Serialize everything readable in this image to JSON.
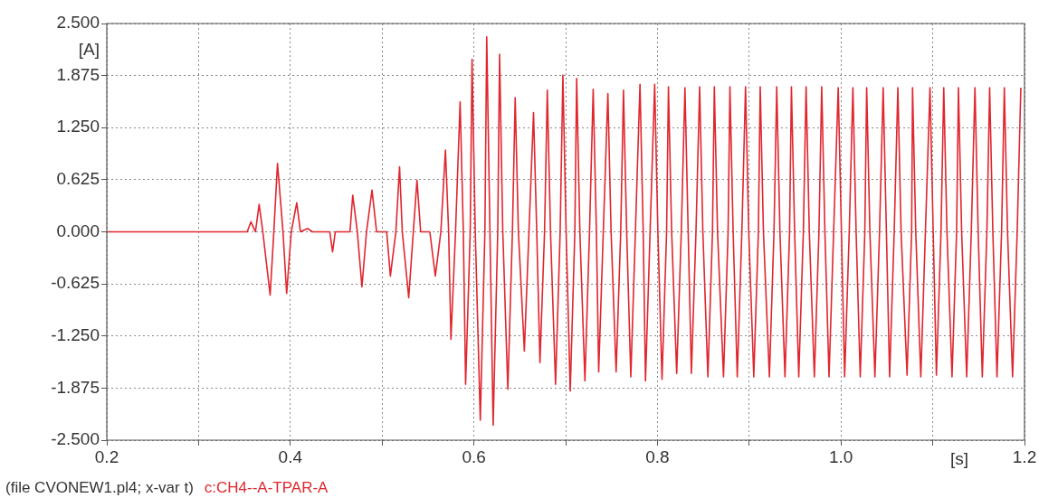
{
  "chart_data": {
    "type": "line",
    "xlabel": "[s]",
    "ylabel": "[A]",
    "annotations": [
      "(file CVONEW1.pl4; x-var t)"
    ],
    "xlim": [
      0.2,
      1.2
    ],
    "xticks": [
      0.2,
      {
        "value": 0.3,
        "label": null
      },
      0.4,
      {
        "value": 0.5,
        "label": null
      },
      0.6,
      {
        "value": 0.7,
        "label": null
      },
      0.8,
      {
        "value": 0.9,
        "label": null
      },
      {
        "value": 1.0,
        "label": "1.0"
      },
      {
        "value": 1.1,
        "label": null
      },
      1.2
    ],
    "ylim": [
      -2.5,
      2.5
    ],
    "yticks": [
      {
        "value": -2.5,
        "label": "-2.500"
      },
      {
        "value": -1.875,
        "label": "-1.875"
      },
      {
        "value": -1.25,
        "label": "-1.250"
      },
      {
        "value": -0.625,
        "label": "-0.625"
      },
      {
        "value": 0,
        "label": "0.000"
      },
      {
        "value": 0.625,
        "label": "0.625"
      },
      {
        "value": 1.25,
        "label": "1.250"
      },
      {
        "value": 1.875,
        "label": "1.875"
      },
      {
        "value": 2.5,
        "label": "2.500"
      }
    ],
    "grid": true,
    "legend": "bottom",
    "marker": "none",
    "line_style": "solid",
    "series": [
      {
        "name": "c:CH4--A-TPAR-A",
        "color": "#e0262e",
        "x": [
          0.2,
          0.353,
          0.357,
          0.362,
          0.366,
          0.37,
          0.378,
          0.382,
          0.386,
          0.392,
          0.396,
          0.401,
          0.407,
          0.411,
          0.419,
          0.424,
          0.443,
          0.446,
          0.449,
          0.465,
          0.468,
          0.473,
          0.478,
          0.483,
          0.489,
          0.494,
          0.505,
          0.509,
          0.515,
          0.519,
          0.522,
          0.529,
          0.534,
          0.538,
          0.542,
          0.552,
          0.558,
          0.564,
          0.569,
          0.5725,
          0.575,
          0.58,
          0.585,
          0.5885,
          0.591,
          0.596,
          0.598,
          0.6015,
          0.607,
          0.612,
          0.614,
          0.6175,
          0.621,
          0.626,
          0.628,
          0.6315,
          0.637,
          0.642,
          0.645,
          0.6485,
          0.655,
          0.66,
          0.665,
          0.6685,
          0.672,
          0.677,
          0.68,
          0.6835,
          0.689,
          0.694,
          0.697,
          0.7005,
          0.705,
          0.71,
          0.712,
          0.7155,
          0.721,
          0.726,
          0.73,
          0.7335,
          0.736,
          0.741,
          0.746,
          0.7495,
          0.755,
          0.76,
          0.763,
          0.7665,
          0.771,
          0.776,
          0.781,
          0.7845,
          0.787,
          0.792,
          0.797,
          0.8005,
          0.805,
          0.81,
          0.812,
          0.8155,
          0.821,
          0.826,
          0.83,
          0.8335,
          0.837,
          0.842,
          0.846,
          0.8495,
          0.855,
          0.86,
          0.862,
          0.8655,
          0.872,
          0.877,
          0.879,
          0.8825,
          0.887,
          0.892,
          0.896,
          0.8995,
          0.905,
          0.91,
          0.912,
          0.9155,
          0.922,
          0.927,
          0.93,
          0.9335,
          0.939,
          0.944,
          0.946,
          0.9495,
          0.954,
          0.959,
          0.962,
          0.9655,
          0.971,
          0.976,
          0.979,
          0.9825,
          0.987,
          0.992,
          0.997,
          1.0005,
          1.004,
          1.009,
          1.013,
          1.0165,
          1.021,
          1.026,
          1.028,
          1.0315,
          1.037,
          1.042,
          1.046,
          1.0495,
          1.053,
          1.058,
          1.062,
          1.0655,
          1.072,
          1.077,
          1.078,
          1.0815,
          1.087,
          1.092,
          1.097,
          1.1005,
          1.104,
          1.109,
          1.112,
          1.1155,
          1.121,
          1.126,
          1.128,
          1.1315,
          1.137,
          1.142,
          1.146,
          1.1495,
          1.154,
          1.159,
          1.162,
          1.1655,
          1.17,
          1.175,
          1.178,
          1.1815,
          1.187,
          1.192,
          1.196
        ],
        "values": [
          0,
          0,
          0.12,
          0,
          0.33,
          0,
          -0.76,
          0,
          0.82,
          0,
          -0.74,
          0,
          0.35,
          0,
          0.04,
          0,
          0,
          -0.24,
          0,
          0,
          0.44,
          0,
          -0.66,
          0,
          0.5,
          0,
          0,
          -0.53,
          0,
          0.78,
          0,
          -0.79,
          0,
          0.62,
          0,
          0,
          -0.53,
          0,
          0.98,
          0,
          -1.29,
          0,
          1.56,
          0,
          -1.83,
          0,
          2.07,
          0,
          -2.26,
          0,
          2.34,
          0,
          -2.32,
          0,
          2.13,
          0,
          -1.89,
          0,
          1.61,
          0,
          -1.43,
          0,
          1.43,
          0,
          -1.57,
          0,
          1.7,
          0,
          -1.83,
          0,
          1.88,
          0,
          -1.91,
          0,
          1.84,
          0,
          -1.79,
          0,
          1.71,
          0,
          -1.68,
          0,
          1.66,
          0,
          -1.68,
          0,
          1.7,
          0,
          -1.74,
          0,
          1.77,
          0,
          -1.79,
          0,
          1.77,
          0,
          -1.77,
          0,
          1.74,
          0,
          -1.7,
          0,
          1.73,
          0,
          -1.7,
          0,
          1.74,
          0,
          -1.74,
          0,
          1.74,
          0,
          -1.74,
          0,
          1.74,
          0,
          -1.74,
          0,
          1.74,
          0,
          -1.74,
          0,
          1.74,
          0,
          -1.74,
          0,
          1.74,
          0,
          -1.74,
          0,
          1.74,
          0,
          -1.74,
          0,
          1.74,
          0,
          -1.74,
          0,
          1.74,
          0,
          -1.74,
          0,
          1.73,
          0,
          -1.74,
          0,
          1.73,
          0,
          -1.74,
          0,
          1.73,
          0,
          -1.74,
          0,
          1.73,
          0,
          -1.74,
          0,
          1.73,
          0,
          -1.72,
          0,
          1.73,
          0,
          -1.74,
          0,
          1.73,
          0,
          -1.72,
          0,
          1.73,
          0,
          -1.74,
          0,
          1.73,
          0,
          -1.74,
          0,
          1.73,
          0,
          -1.74,
          0,
          1.73,
          0,
          -1.74,
          0,
          1.73,
          0,
          -1.74,
          0,
          1.73
        ]
      }
    ]
  }
}
